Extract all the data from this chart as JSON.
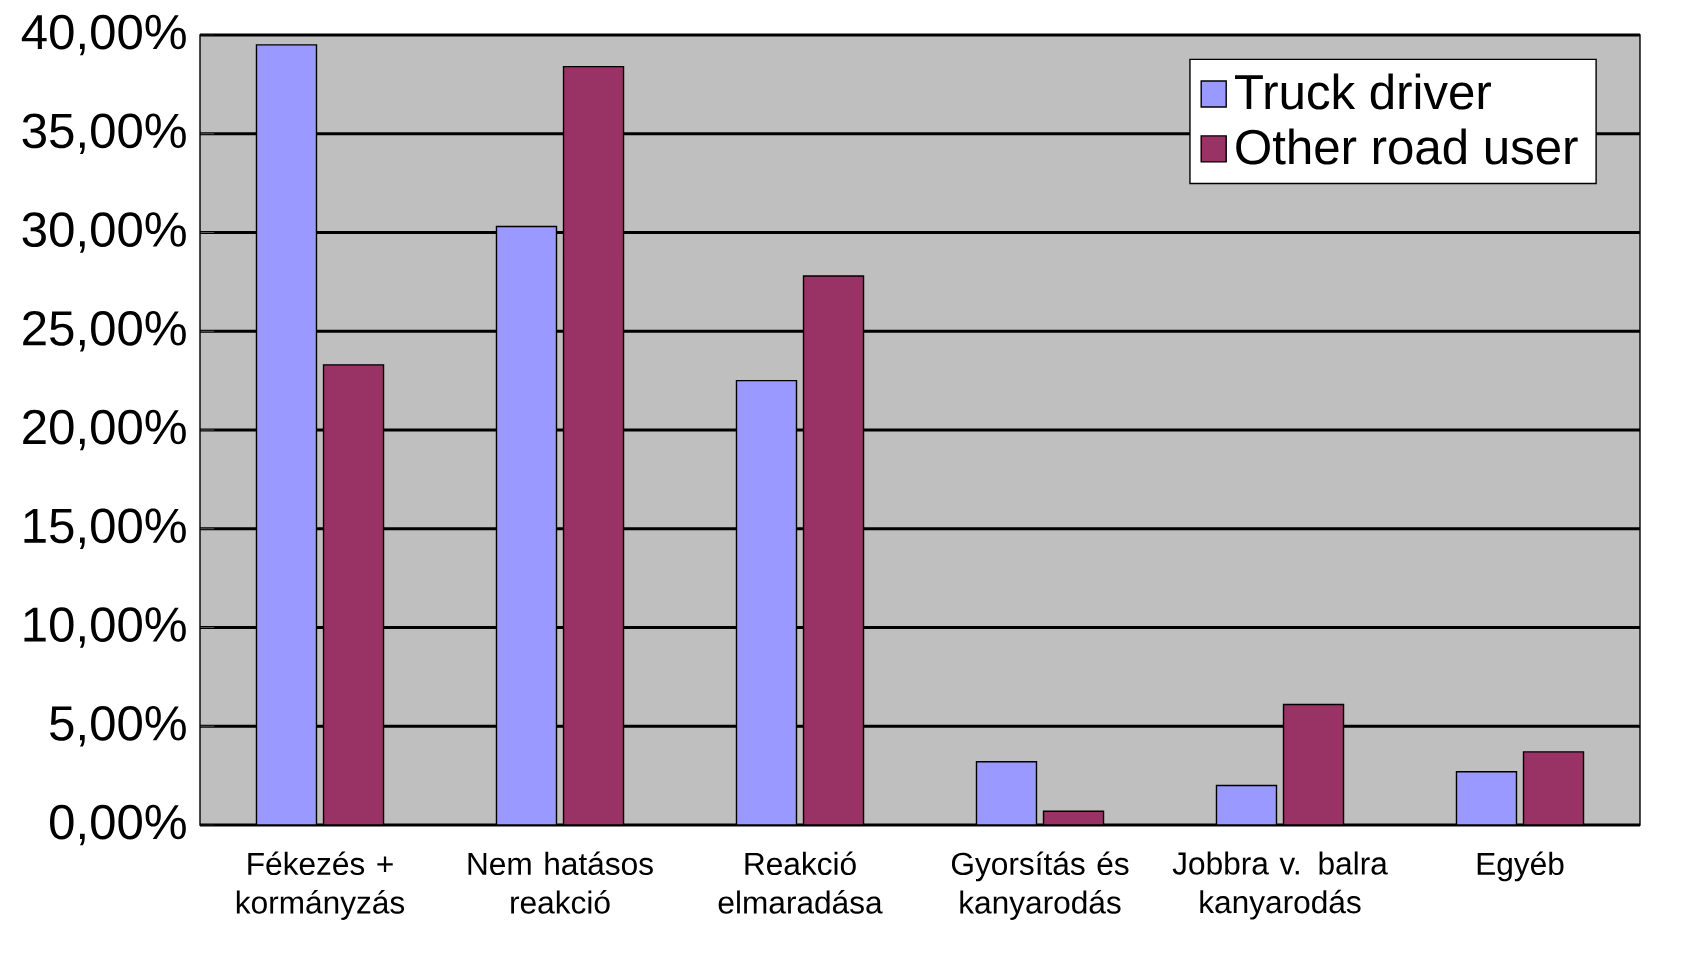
{
  "chart_data": {
    "type": "bar",
    "categories": [
      "Fékezés + kormányzás",
      "Nem hatásos reakció",
      "Reakció elmaradása",
      "Gyorsítás és kanyarodás",
      "Jobbra v. balra kanyarodás",
      "Egyéb"
    ],
    "series": [
      {
        "name": "Truck driver",
        "color": "#9999ff",
        "values": [
          39.5,
          30.3,
          22.5,
          3.2,
          2.0,
          2.7
        ]
      },
      {
        "name": "Other road user",
        "color": "#993366",
        "values": [
          23.3,
          38.4,
          27.8,
          0.7,
          6.1,
          3.7
        ]
      }
    ],
    "ylim": [
      0,
      40
    ],
    "yticks": [
      {
        "value": 0,
        "label": "0,00%"
      },
      {
        "value": 5,
        "label": "5,00%"
      },
      {
        "value": 10,
        "label": "10,00%"
      },
      {
        "value": 15,
        "label": "15,00%"
      },
      {
        "value": 20,
        "label": "20,00%"
      },
      {
        "value": 25,
        "label": "25,00%"
      },
      {
        "value": 30,
        "label": "30,00%"
      },
      {
        "value": 35,
        "label": "35,00%"
      },
      {
        "value": 40,
        "label": "40,00%"
      }
    ],
    "grid": "y",
    "legend": "top right"
  }
}
